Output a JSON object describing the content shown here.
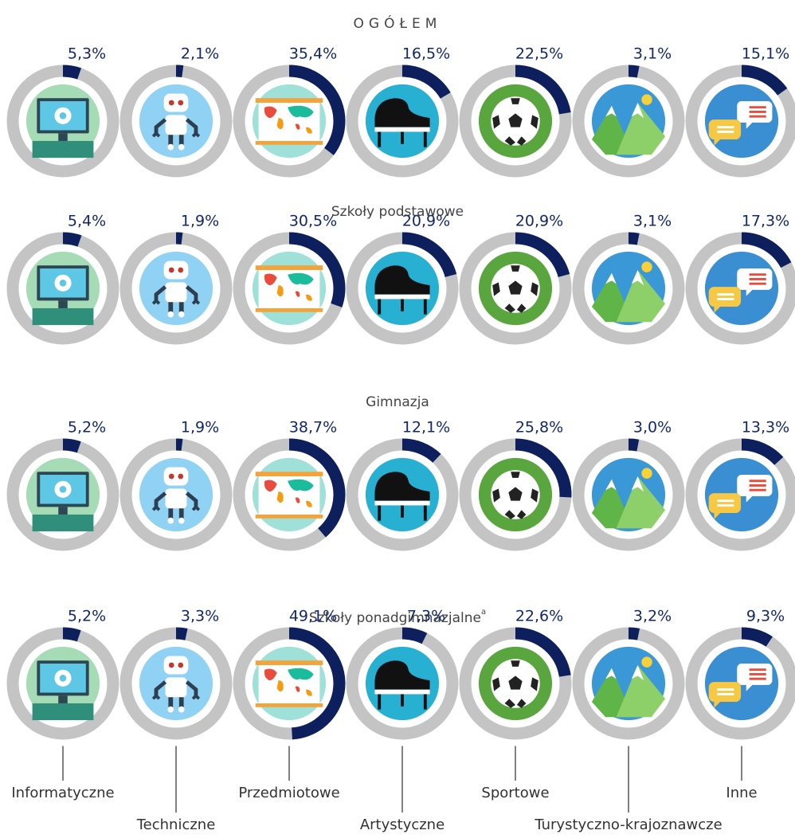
{
  "chart_data": {
    "type": "donut",
    "categories": [
      "Informatyczne",
      "Techniczne",
      "Przedmiotowe",
      "Artystyczne",
      "Sportowe",
      "Turystyczno-krajoznawcze",
      "Inne"
    ],
    "color": "#0d1f5c",
    "track_color": "#c4c4c4",
    "groups": [
      {
        "title": "OGÓŁEM",
        "values": [
          5.3,
          2.1,
          35.4,
          16.5,
          22.5,
          3.1,
          15.1
        ],
        "value_labels": [
          "5,3%",
          "2,1%",
          "35,4%",
          "16,5%",
          "22,5%",
          "3,1%",
          "15,1%"
        ]
      },
      {
        "title": "Szkoły podstawowe",
        "values": [
          5.4,
          1.9,
          30.5,
          20.9,
          20.9,
          3.1,
          17.3
        ],
        "value_labels": [
          "5,4%",
          "1,9%",
          "30,5%",
          "20,9%",
          "20,9%",
          "3,1%",
          "17,3%"
        ]
      },
      {
        "title": "Gimnazja",
        "values": [
          5.2,
          1.9,
          38.7,
          12.1,
          25.8,
          3.0,
          13.3
        ],
        "value_labels": [
          "5,2%",
          "1,9%",
          "38,7%",
          "12,1%",
          "25,8%",
          "3,0%",
          "13,3%"
        ]
      },
      {
        "title": "Szkoły ponadgimnazjalne",
        "title_note": "a",
        "values": [
          5.2,
          3.3,
          49.1,
          7.3,
          22.6,
          3.2,
          9.3
        ],
        "value_labels": [
          "5,2%",
          "3,3%",
          "49,1%",
          "7,3%",
          "22,6%",
          "3,2%",
          "9,3%"
        ]
      }
    ]
  }
}
